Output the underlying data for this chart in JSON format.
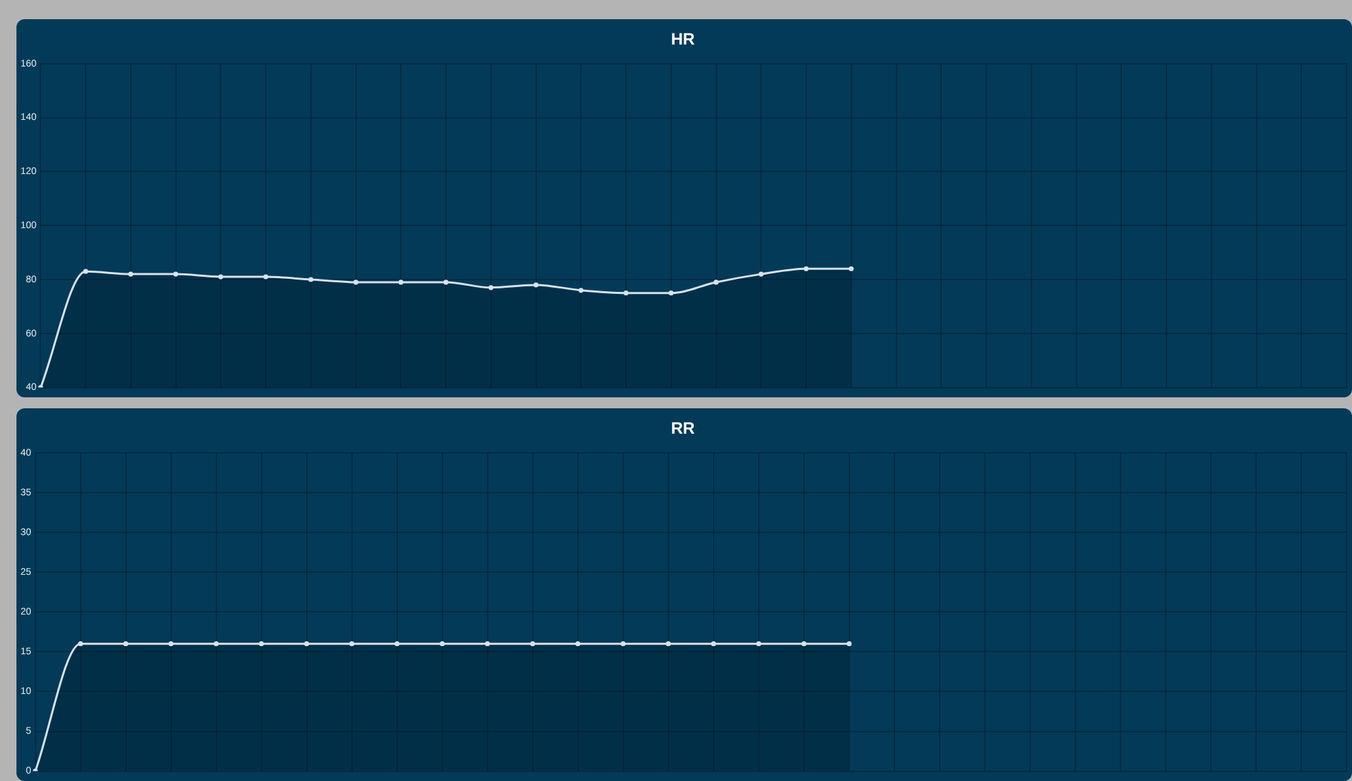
{
  "chart_data": [
    {
      "type": "area",
      "title": "HR",
      "categories": [
        null,
        null,
        null,
        null,
        null,
        null,
        null,
        null,
        null,
        null,
        null,
        null,
        null,
        null,
        null,
        null,
        null,
        null,
        null,
        null,
        null,
        null,
        null,
        null,
        null,
        null,
        null,
        null,
        null,
        null
      ],
      "series": [
        {
          "color": "#d8e2ea",
          "values": [
            40,
            83,
            82,
            82,
            81,
            81,
            80,
            79,
            79,
            79,
            77,
            78,
            76,
            75,
            75,
            79,
            82,
            84,
            84,
            null,
            null,
            null,
            null,
            null,
            null,
            null,
            null,
            null,
            null,
            null
          ]
        }
      ],
      "ylim": [
        40,
        160
      ],
      "yticks": [
        40,
        60,
        80,
        100,
        120,
        140,
        160
      ],
      "grid": true,
      "marker": "circle",
      "tick_labels": "y"
    },
    {
      "type": "area",
      "title": "RR",
      "categories": [
        null,
        null,
        null,
        null,
        null,
        null,
        null,
        null,
        null,
        null,
        null,
        null,
        null,
        null,
        null,
        null,
        null,
        null,
        null,
        null,
        null,
        null,
        null,
        null,
        null,
        null,
        null,
        null,
        null,
        null
      ],
      "series": [
        {
          "color": "#d8e2ea",
          "values": [
            0,
            16,
            16,
            16,
            16,
            16,
            16,
            16,
            16,
            16,
            16,
            16,
            16,
            16,
            16,
            16,
            16,
            16,
            16,
            null,
            null,
            null,
            null,
            null,
            null,
            null,
            null,
            null,
            null,
            null
          ]
        }
      ],
      "ylim": [
        0,
        40
      ],
      "yticks": [
        0,
        5,
        10,
        15,
        20,
        25,
        30,
        35,
        40
      ],
      "grid": true,
      "marker": "circle",
      "tick_labels": "y"
    }
  ]
}
